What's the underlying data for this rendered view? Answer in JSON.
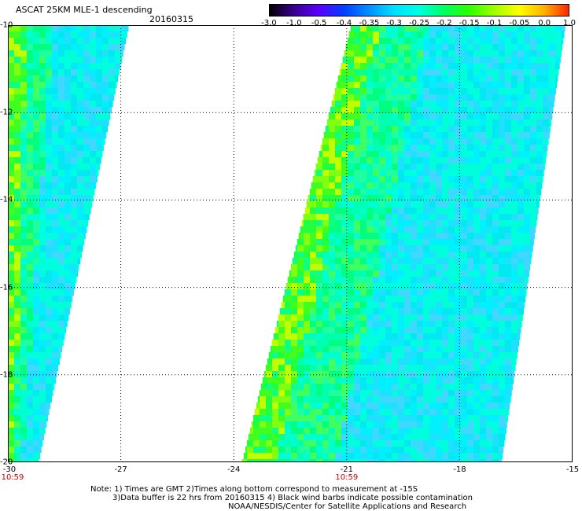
{
  "header": {
    "title": "ASCAT 25KM MLE-1 descending",
    "date": "20160315"
  },
  "colorbar": {
    "labels": [
      "-3.0",
      "-1.0",
      "-0.5",
      "-0.4",
      "-0.35",
      "-0.3",
      "-0.25",
      "-0.2",
      "-0.15",
      "-0.1",
      "-0.05",
      "0.0",
      "1.0"
    ],
    "colors": [
      "#000000",
      "#3a0090",
      "#5a00ff",
      "#0040ff",
      "#0090ff",
      "#00e0ff",
      "#00ffe0",
      "#00ff60",
      "#30ff00",
      "#a0ff00",
      "#ffff00",
      "#ffb000",
      "#ff2000"
    ]
  },
  "axes": {
    "y_labels": [
      "-10",
      "-12",
      "-14",
      "-16",
      "-18",
      "-20"
    ],
    "y_values": [
      -10,
      -12,
      -14,
      -16,
      -18,
      -20
    ],
    "x_labels": [
      "-30",
      "-27",
      "-24",
      "-21",
      "-18",
      "-15"
    ],
    "x_values": [
      -30,
      -27,
      -24,
      -21,
      -18,
      -15
    ],
    "time_labels": [
      {
        "text": "10:59",
        "lon": -30
      },
      {
        "text": "10:59",
        "lon": -21
      }
    ]
  },
  "map": {
    "lon_range": [
      -30,
      -15
    ],
    "lat_range": [
      -20,
      -10
    ],
    "swaths": [
      {
        "name": "left-swath",
        "lon_top": [
          -30,
          -26.8
        ],
        "lon_bottom": [
          -30,
          -29.2
        ]
      },
      {
        "name": "right-swath",
        "lon_top": [
          -20.9,
          -15.2
        ],
        "lon_bottom": [
          -23.8,
          -16.9
        ]
      }
    ]
  },
  "notes": [
    "Note: 1) Times are GMT 2)Times along bottom correspond to measurement at -15S",
    "3)Data buffer is 22 hrs from 20160315 4) Black wind barbs indicate possible contamination",
    "NOAA/NESDIS/Center for Satellite Applications and Research"
  ]
}
